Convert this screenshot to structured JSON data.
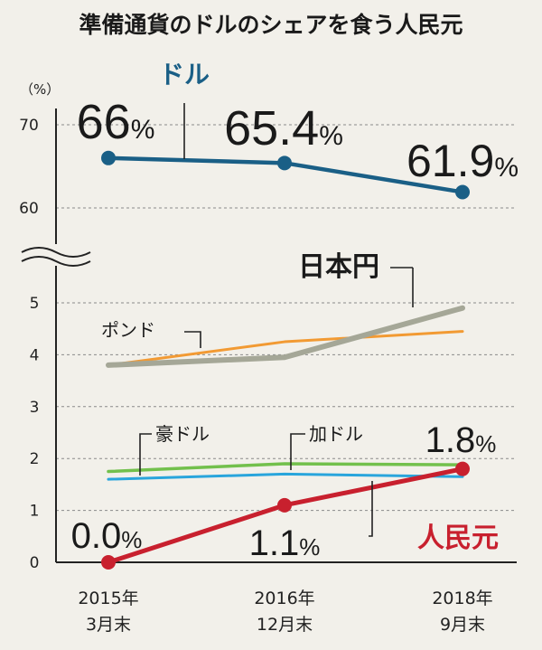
{
  "title": "準備通貨のドルのシェアを食う人民元",
  "chart_data": {
    "type": "line",
    "unit_label": "（%）",
    "categories": [
      {
        "year": "2015年",
        "period": "3月末"
      },
      {
        "year": "2016年",
        "period": "12月末"
      },
      {
        "year": "2018年",
        "period": "9月末"
      }
    ],
    "y_ticks_upper": [
      "70",
      "60"
    ],
    "y_ticks_lower": [
      "5",
      "4",
      "3",
      "2",
      "1",
      "0"
    ],
    "ylim_upper": [
      58,
      72
    ],
    "ylim_lower": [
      0,
      5
    ],
    "axis_break": true,
    "grid": "dashed horizontal",
    "series": [
      {
        "name": "ドル",
        "color": "#1a5f86",
        "values": [
          66.0,
          65.4,
          61.9
        ],
        "markers": true,
        "data_labels": [
          {
            "num": "66",
            "pct": "%"
          },
          {
            "num": "65.4",
            "pct": "%"
          },
          {
            "num": "61.9",
            "pct": "%"
          }
        ]
      },
      {
        "name": "日本円",
        "color": "#a5a797",
        "values": [
          3.8,
          3.95,
          4.9
        ]
      },
      {
        "name": "ポンド",
        "color": "#f29a33",
        "values": [
          3.8,
          4.25,
          4.45
        ]
      },
      {
        "name": "豪ドル",
        "color": "#72c04c",
        "values": [
          1.75,
          1.9,
          1.88
        ]
      },
      {
        "name": "加ドル",
        "color": "#29a5dc",
        "values": [
          1.6,
          1.7,
          1.65
        ]
      },
      {
        "name": "人民元",
        "color": "#c8202e",
        "values": [
          0.0,
          1.1,
          1.8
        ],
        "markers": true,
        "data_labels": [
          {
            "num": "0.0",
            "pct": "%"
          },
          {
            "num": "1.1",
            "pct": "%"
          },
          {
            "num": "1.8",
            "pct": "%"
          }
        ]
      }
    ]
  }
}
